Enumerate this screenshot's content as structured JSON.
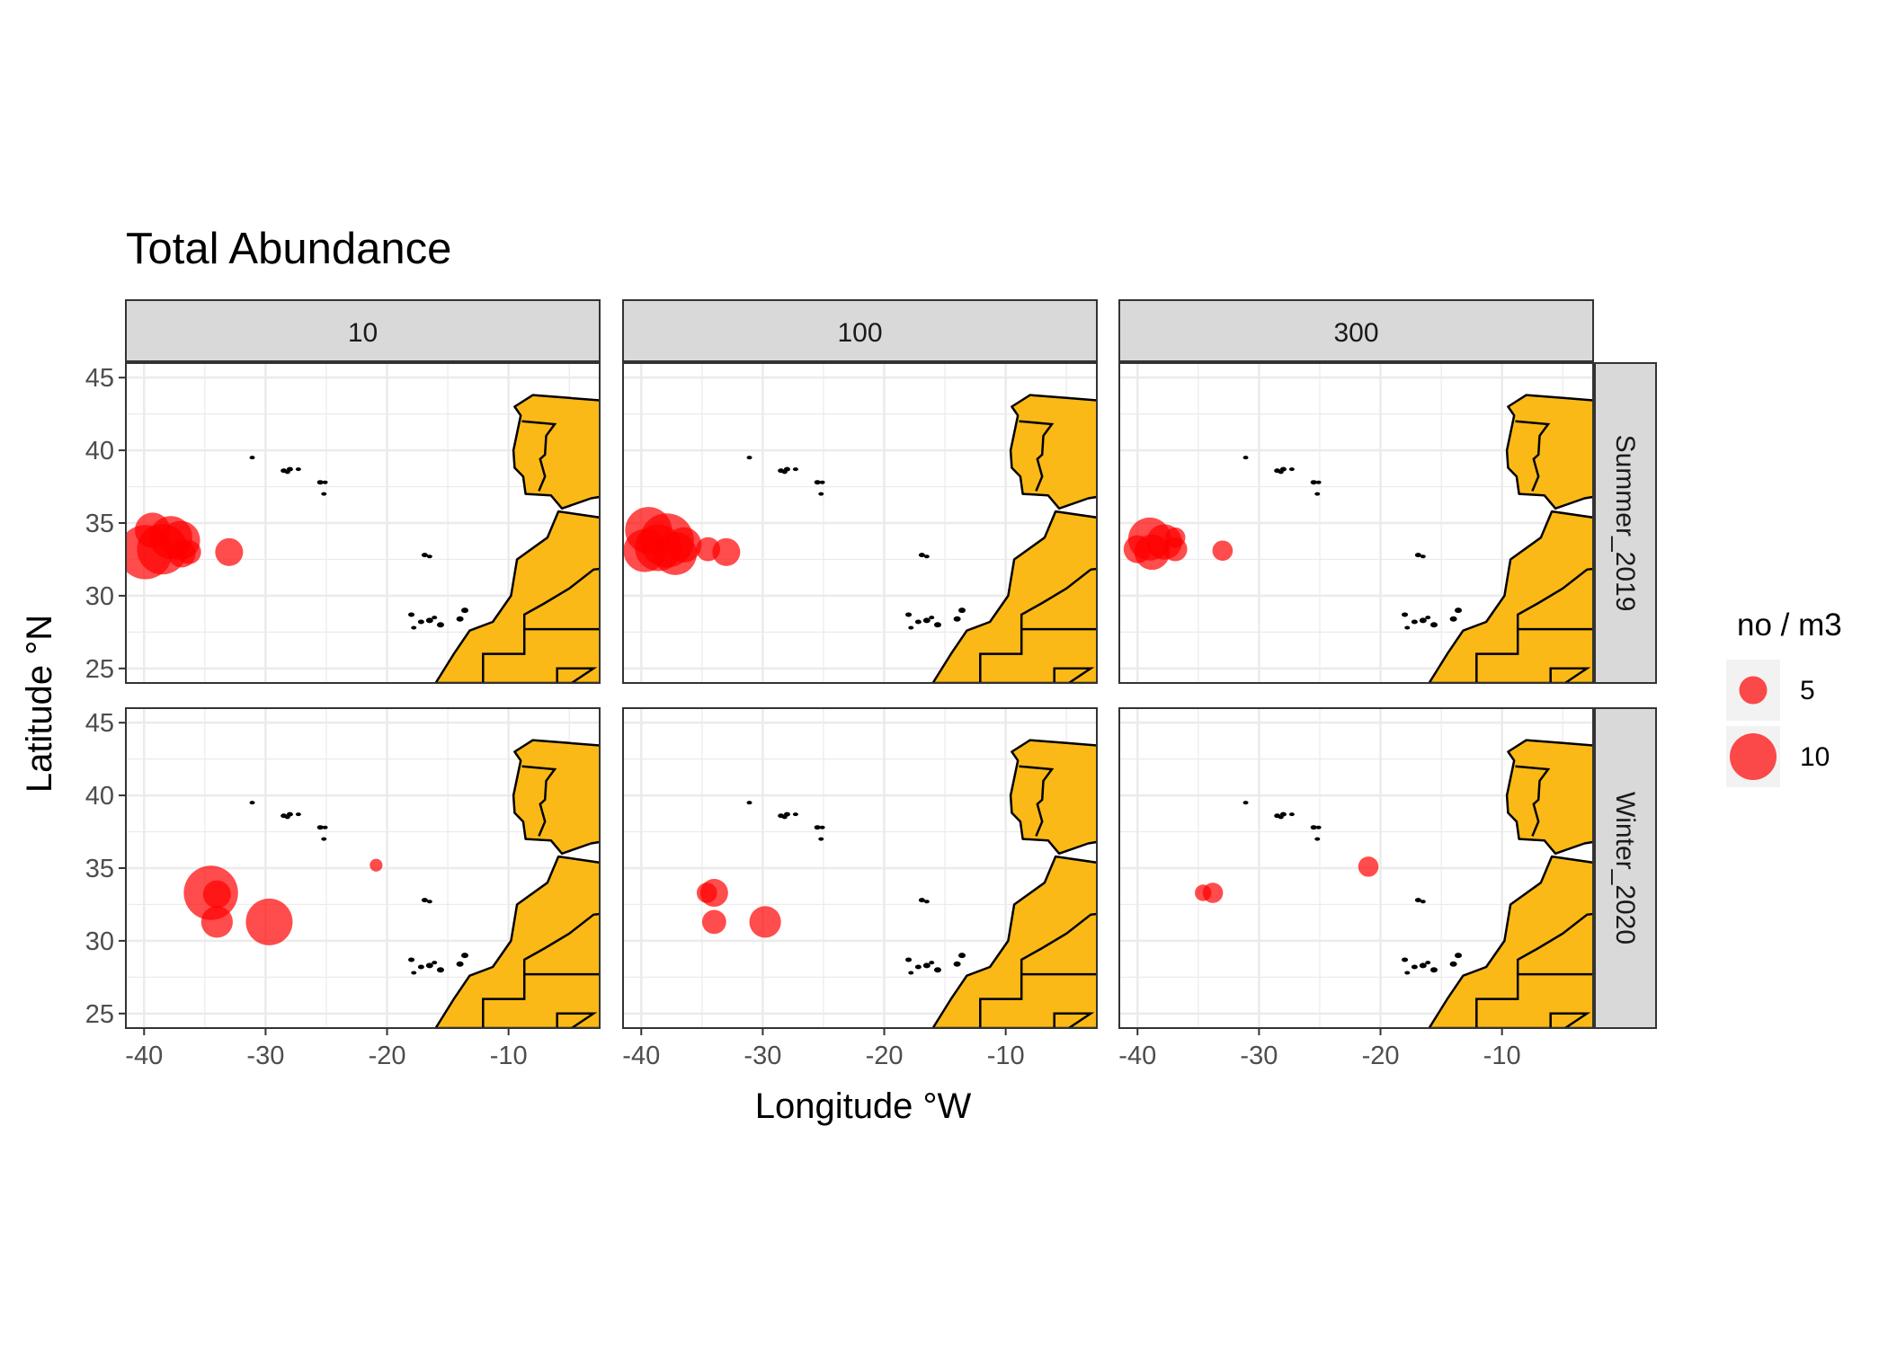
{
  "chart_data": {
    "type": "scatter",
    "title": "Total Abundance",
    "xlabel": "Longitude °W",
    "ylabel": "Latitude °N",
    "xlim": [
      -41.5,
      -2.5
    ],
    "ylim": [
      24,
      46
    ],
    "x_ticks": [
      -40,
      -30,
      -20,
      -10
    ],
    "y_ticks": [
      25,
      30,
      35,
      40,
      45
    ],
    "x_tick_labels": [
      "-40",
      "-30",
      "-20",
      "-10"
    ],
    "y_tick_labels": [
      "25",
      "30",
      "35",
      "40",
      "45"
    ],
    "grid": true,
    "facet_columns": [
      "10",
      "100",
      "300"
    ],
    "facet_rows": [
      "Summer_2019",
      "Winter_2020"
    ],
    "legend": {
      "title": "no / m3",
      "position": "right",
      "entries": [
        {
          "label": "5",
          "value": 5
        },
        {
          "label": "10",
          "value": 10
        }
      ]
    },
    "colors": {
      "points": "#ff0000",
      "land": "#fbb917",
      "strip": "#d9d9d9",
      "grid": "#ebebeb"
    },
    "panels": [
      {
        "column": "10",
        "row": "Summer_2019",
        "points": [
          {
            "x": -39.9,
            "y": 33.0,
            "value": 12
          },
          {
            "x": -39.3,
            "y": 34.5,
            "value": 7
          },
          {
            "x": -38.5,
            "y": 33.2,
            "value": 11
          },
          {
            "x": -37.8,
            "y": 34.0,
            "value": 9
          },
          {
            "x": -37.0,
            "y": 33.8,
            "value": 8
          },
          {
            "x": -36.9,
            "y": 32.9,
            "value": 5
          },
          {
            "x": -36.3,
            "y": 33.0,
            "value": 4
          },
          {
            "x": -33.0,
            "y": 33.0,
            "value": 5
          }
        ]
      },
      {
        "column": "100",
        "row": "Summer_2019",
        "points": [
          {
            "x": -39.7,
            "y": 33.1,
            "value": 9
          },
          {
            "x": -39.4,
            "y": 34.5,
            "value": 10
          },
          {
            "x": -38.6,
            "y": 33.3,
            "value": 10
          },
          {
            "x": -37.9,
            "y": 33.8,
            "value": 12
          },
          {
            "x": -37.2,
            "y": 32.9,
            "value": 9
          },
          {
            "x": -36.5,
            "y": 33.5,
            "value": 7
          },
          {
            "x": -34.5,
            "y": 33.2,
            "value": 4
          },
          {
            "x": -33.0,
            "y": 33.0,
            "value": 5
          }
        ]
      },
      {
        "column": "300",
        "row": "Summer_2019",
        "points": [
          {
            "x": -40.0,
            "y": 33.2,
            "value": 5
          },
          {
            "x": -39.0,
            "y": 33.9,
            "value": 9
          },
          {
            "x": -38.8,
            "y": 33.0,
            "value": 7
          },
          {
            "x": -37.8,
            "y": 33.7,
            "value": 7
          },
          {
            "x": -36.9,
            "y": 33.2,
            "value": 4
          },
          {
            "x": -36.9,
            "y": 34.0,
            "value": 3
          },
          {
            "x": -33.0,
            "y": 33.1,
            "value": 3
          }
        ]
      },
      {
        "column": "10",
        "row": "Winter_2020",
        "points": [
          {
            "x": -34.5,
            "y": 33.3,
            "value": 12
          },
          {
            "x": -34.0,
            "y": 33.2,
            "value": 5
          },
          {
            "x": -34.0,
            "y": 31.3,
            "value": 6
          },
          {
            "x": -29.7,
            "y": 31.3,
            "value": 10
          },
          {
            "x": -20.9,
            "y": 35.2,
            "value": 1
          }
        ]
      },
      {
        "column": "100",
        "row": "Winter_2020",
        "points": [
          {
            "x": -34.6,
            "y": 33.3,
            "value": 3
          },
          {
            "x": -34.0,
            "y": 33.3,
            "value": 5
          },
          {
            "x": -34.0,
            "y": 31.3,
            "value": 4
          },
          {
            "x": -29.8,
            "y": 31.3,
            "value": 6
          }
        ]
      },
      {
        "column": "300",
        "row": "Winter_2020",
        "points": [
          {
            "x": -34.6,
            "y": 33.3,
            "value": 2
          },
          {
            "x": -33.8,
            "y": 33.3,
            "value": 3
          },
          {
            "x": -21.0,
            "y": 35.1,
            "value": 3
          }
        ]
      }
    ]
  }
}
